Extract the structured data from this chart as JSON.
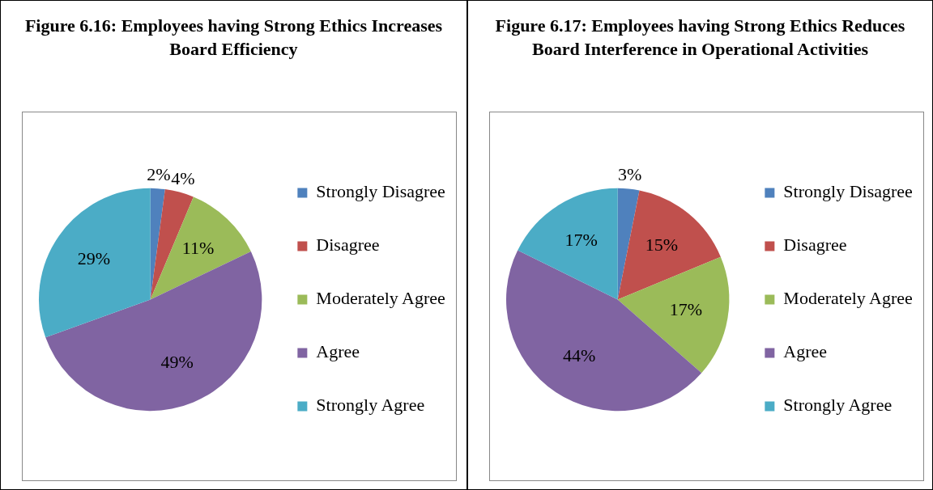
{
  "chart_data": [
    {
      "type": "pie",
      "title": "Figure 6.16: Employees having Strong Ethics Increases Board Efficiency",
      "categories": [
        "Strongly Disagree",
        "Disagree",
        "Moderately Agree",
        "Agree",
        "Strongly Agree"
      ],
      "values": [
        2,
        4,
        11,
        49,
        29
      ],
      "value_labels": [
        "2%",
        "4%",
        "11%",
        "49%",
        "29%"
      ],
      "colors": [
        "#4f81bd",
        "#c0504d",
        "#9bbb59",
        "#8064a2",
        "#4bacc6"
      ],
      "legend": "right"
    },
    {
      "type": "pie",
      "title": "Figure 6.17: Employees having Strong Ethics Reduces Board Interference in Operational Activities",
      "categories": [
        "Strongly Disagree",
        "Disagree",
        "Moderately Agree",
        "Agree",
        "Strongly Agree"
      ],
      "values": [
        3,
        15,
        17,
        44,
        17
      ],
      "value_labels": [
        "3%",
        "15%",
        "17%",
        "44%",
        "17%"
      ],
      "colors": [
        "#4f81bd",
        "#c0504d",
        "#9bbb59",
        "#8064a2",
        "#4bacc6"
      ],
      "legend": "right"
    }
  ]
}
